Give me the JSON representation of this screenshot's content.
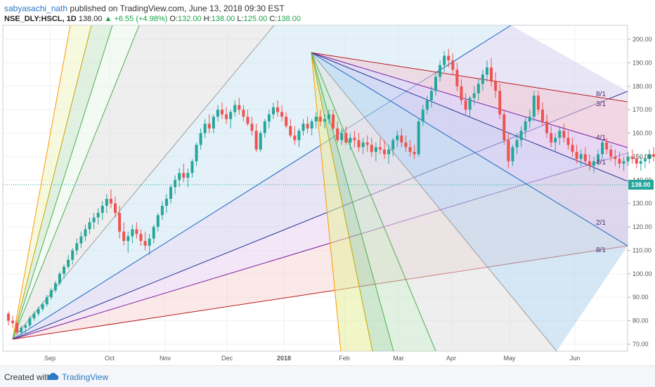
{
  "header": {
    "user": "sabyasachi_nath",
    "published": "published on TradingView.com, June 13, 2018 09:30 EST",
    "symbol": "NSE_DLY:HSCL, 1D",
    "price": "138.00",
    "change": "+6.55 (+4.98%)",
    "ohlc_o_label": "O:",
    "ohlc_o": "132.00",
    "ohlc_h_label": "H:",
    "ohlc_h": "138.00",
    "ohlc_l_label": "L:",
    "ohlc_l": "125.00",
    "ohlc_c_label": "C:",
    "ohlc_c": "138.00"
  },
  "footer": {
    "created": "Created with",
    "brand": "TradingView"
  },
  "colors": {
    "up": "#26a69a",
    "down": "#ef5350",
    "accent": "#2c79c4",
    "price_tag": "#26a69a"
  },
  "chart_data": {
    "type": "candlestick",
    "y_range": [
      67,
      206
    ],
    "y_ticks": [
      70,
      80,
      90,
      100,
      110,
      120,
      130,
      140,
      150,
      160,
      170,
      180,
      190,
      200
    ],
    "x_labels": [
      "Sep",
      "Oct",
      "Nov",
      "Dec",
      "2018",
      "Feb",
      "Mar",
      "Apr",
      "May",
      "Jun"
    ],
    "last_price": "138.00",
    "candles": [
      [
        83,
        84,
        78,
        80
      ],
      [
        80,
        82,
        77,
        79
      ],
      [
        79,
        80,
        74,
        75
      ],
      [
        75,
        78,
        73,
        77
      ],
      [
        77,
        79,
        74,
        78
      ],
      [
        78,
        82,
        77,
        81
      ],
      [
        81,
        84,
        80,
        83
      ],
      [
        83,
        86,
        82,
        85
      ],
      [
        85,
        88,
        84,
        87
      ],
      [
        87,
        91,
        86,
        90
      ],
      [
        90,
        94,
        89,
        93
      ],
      [
        93,
        97,
        92,
        96
      ],
      [
        96,
        101,
        95,
        100
      ],
      [
        100,
        104,
        98,
        103
      ],
      [
        103,
        108,
        102,
        106
      ],
      [
        106,
        111,
        104,
        110
      ],
      [
        110,
        115,
        108,
        113
      ],
      [
        113,
        118,
        111,
        116
      ],
      [
        116,
        121,
        114,
        119
      ],
      [
        119,
        124,
        117,
        122
      ],
      [
        122,
        126,
        119,
        124
      ],
      [
        124,
        128,
        121,
        126
      ],
      [
        126,
        131,
        123,
        129
      ],
      [
        129,
        134,
        126,
        132
      ],
      [
        132,
        136,
        128,
        130
      ],
      [
        130,
        133,
        124,
        126
      ],
      [
        126,
        129,
        115,
        118
      ],
      [
        118,
        122,
        112,
        114
      ],
      [
        114,
        118,
        109,
        116
      ],
      [
        116,
        121,
        113,
        119
      ],
      [
        119,
        122,
        115,
        117
      ],
      [
        117,
        119,
        112,
        114
      ],
      [
        114,
        118,
        110,
        112
      ],
      [
        112,
        117,
        108,
        115
      ],
      [
        115,
        121,
        113,
        120
      ],
      [
        120,
        126,
        118,
        125
      ],
      [
        125,
        131,
        123,
        129
      ],
      [
        129,
        134,
        126,
        132
      ],
      [
        132,
        138,
        130,
        137
      ],
      [
        137,
        142,
        134,
        140
      ],
      [
        140,
        145,
        137,
        143
      ],
      [
        143,
        147,
        139,
        141
      ],
      [
        141,
        145,
        137,
        143
      ],
      [
        143,
        149,
        141,
        148
      ],
      [
        148,
        156,
        146,
        155
      ],
      [
        155,
        162,
        153,
        160
      ],
      [
        160,
        166,
        158,
        164
      ],
      [
        164,
        168,
        160,
        162
      ],
      [
        162,
        168,
        160,
        167
      ],
      [
        167,
        172,
        165,
        170
      ],
      [
        170,
        173,
        166,
        168
      ],
      [
        168,
        171,
        164,
        166
      ],
      [
        166,
        170,
        162,
        169
      ],
      [
        169,
        174,
        167,
        172
      ],
      [
        172,
        175,
        168,
        170
      ],
      [
        170,
        172,
        165,
        167
      ],
      [
        167,
        170,
        163,
        164
      ],
      [
        164,
        167,
        159,
        161
      ],
      [
        161,
        164,
        152,
        153
      ],
      [
        153,
        161,
        152,
        160
      ],
      [
        160,
        166,
        158,
        165
      ],
      [
        165,
        170,
        162,
        168
      ],
      [
        168,
        173,
        166,
        171
      ],
      [
        171,
        174,
        167,
        169
      ],
      [
        169,
        172,
        165,
        167
      ],
      [
        167,
        169,
        162,
        163
      ],
      [
        163,
        166,
        158,
        159
      ],
      [
        159,
        163,
        155,
        157
      ],
      [
        157,
        162,
        154,
        161
      ],
      [
        161,
        166,
        159,
        164
      ],
      [
        164,
        167,
        160,
        162
      ],
      [
        162,
        166,
        159,
        165
      ],
      [
        165,
        169,
        162,
        167
      ],
      [
        167,
        170,
        163,
        165
      ],
      [
        165,
        168,
        162,
        166
      ],
      [
        166,
        170,
        164,
        168
      ],
      [
        168,
        170,
        161,
        162
      ],
      [
        162,
        165,
        156,
        157
      ],
      [
        157,
        162,
        155,
        160
      ],
      [
        160,
        163,
        155,
        156
      ],
      [
        156,
        160,
        153,
        158
      ],
      [
        158,
        161,
        154,
        157
      ],
      [
        157,
        160,
        152,
        154
      ],
      [
        154,
        158,
        151,
        156
      ],
      [
        156,
        159,
        152,
        155
      ],
      [
        155,
        158,
        150,
        152
      ],
      [
        152,
        156,
        148,
        154
      ],
      [
        154,
        158,
        151,
        153
      ],
      [
        153,
        157,
        149,
        151
      ],
      [
        151,
        155,
        147,
        153
      ],
      [
        153,
        158,
        150,
        157
      ],
      [
        157,
        161,
        154,
        159
      ],
      [
        159,
        162,
        154,
        156
      ],
      [
        156,
        159,
        152,
        154
      ],
      [
        154,
        157,
        150,
        152
      ],
      [
        152,
        155,
        149,
        151
      ],
      [
        151,
        166,
        150,
        165
      ],
      [
        165,
        172,
        163,
        170
      ],
      [
        170,
        176,
        168,
        174
      ],
      [
        174,
        180,
        171,
        178
      ],
      [
        178,
        186,
        176,
        184
      ],
      [
        184,
        191,
        182,
        189
      ],
      [
        189,
        195,
        186,
        193
      ],
      [
        193,
        196,
        188,
        191
      ],
      [
        191,
        194,
        185,
        187
      ],
      [
        187,
        190,
        178,
        180
      ],
      [
        180,
        183,
        172,
        174
      ],
      [
        174,
        177,
        168,
        170
      ],
      [
        170,
        176,
        167,
        175
      ],
      [
        175,
        180,
        172,
        177
      ],
      [
        177,
        183,
        174,
        181
      ],
      [
        181,
        187,
        178,
        185
      ],
      [
        185,
        191,
        182,
        188
      ],
      [
        188,
        192,
        180,
        182
      ],
      [
        182,
        186,
        175,
        178
      ],
      [
        178,
        181,
        166,
        168
      ],
      [
        168,
        170,
        155,
        157
      ],
      [
        157,
        160,
        145,
        148
      ],
      [
        148,
        155,
        146,
        154
      ],
      [
        154,
        160,
        151,
        157
      ],
      [
        157,
        163,
        154,
        161
      ],
      [
        161,
        167,
        158,
        165
      ],
      [
        165,
        170,
        162,
        167
      ],
      [
        167,
        178,
        165,
        176
      ],
      [
        176,
        178,
        168,
        170
      ],
      [
        170,
        173,
        163,
        165
      ],
      [
        165,
        168,
        158,
        160
      ],
      [
        160,
        163,
        154,
        156
      ],
      [
        156,
        160,
        152,
        158
      ],
      [
        158,
        163,
        155,
        161
      ],
      [
        161,
        164,
        156,
        158
      ],
      [
        158,
        161,
        153,
        155
      ],
      [
        155,
        158,
        150,
        152
      ],
      [
        152,
        155,
        147,
        149
      ],
      [
        149,
        153,
        146,
        151
      ],
      [
        151,
        154,
        147,
        148
      ],
      [
        148,
        151,
        144,
        146
      ],
      [
        146,
        150,
        143,
        148
      ],
      [
        148,
        153,
        146,
        151
      ],
      [
        151,
        157,
        149,
        156
      ],
      [
        156,
        158,
        151,
        153
      ],
      [
        153,
        155,
        148,
        150
      ],
      [
        150,
        153,
        146,
        149
      ],
      [
        149,
        152,
        145,
        147
      ],
      [
        147,
        150,
        144,
        148
      ],
      [
        148,
        152,
        146,
        150
      ],
      [
        150,
        153,
        147,
        149
      ],
      [
        149,
        151,
        145,
        147
      ],
      [
        147,
        150,
        144,
        148
      ],
      [
        148,
        151,
        145,
        149
      ],
      [
        149,
        153,
        147,
        151
      ],
      [
        151,
        154,
        148,
        150
      ],
      [
        150,
        153,
        147,
        149
      ],
      [
        149,
        152,
        146,
        148
      ],
      [
        148,
        151,
        145,
        150
      ],
      [
        150,
        153,
        147,
        149
      ],
      [
        149,
        152,
        145,
        147
      ],
      [
        147,
        151,
        145,
        150
      ],
      [
        150,
        154,
        148,
        153
      ],
      [
        153,
        155,
        149,
        151
      ],
      [
        151,
        153,
        145,
        146
      ],
      [
        146,
        149,
        141,
        143
      ],
      [
        143,
        146,
        120,
        122
      ],
      [
        122,
        132,
        121,
        131
      ],
      [
        131,
        141,
        129,
        138
      ],
      [
        138,
        140,
        131,
        133
      ],
      [
        133,
        136,
        130,
        134
      ],
      [
        134,
        137,
        131,
        133
      ],
      [
        133,
        136,
        129,
        132
      ],
      [
        132,
        137,
        130,
        135
      ],
      [
        135,
        138,
        130,
        131
      ],
      [
        131,
        140,
        130,
        139
      ],
      [
        139,
        143,
        136,
        141
      ],
      [
        141,
        143,
        136,
        138
      ],
      [
        138,
        140,
        131,
        132
      ],
      [
        132,
        134,
        120,
        122
      ],
      [
        122,
        124,
        109,
        113
      ],
      [
        113,
        121,
        111,
        120
      ],
      [
        120,
        128,
        118,
        126
      ],
      [
        126,
        131,
        123,
        129
      ],
      [
        129,
        135,
        126,
        133
      ],
      [
        132,
        138,
        125,
        138
      ]
    ],
    "fans": [
      {
        "origin": [
          0,
          72
        ],
        "lines": [
          [
            8,
            196
          ],
          [
            17,
            196
          ],
          [
            26,
            196
          ],
          [
            41,
            196
          ],
          [
            128,
            125
          ],
          [
            128,
            118
          ],
          [
            128,
            111
          ],
          [
            128,
            98
          ]
        ]
      },
      {
        "origin": [
          98,
          196
        ],
        "lines": [
          [
            90,
            70
          ],
          [
            98,
            70
          ],
          [
            107,
            70
          ],
          [
            122,
            70
          ],
          [
            128,
            176
          ],
          [
            128,
            156
          ],
          [
            128,
            141
          ],
          [
            128,
            114
          ],
          [
            128,
            111
          ]
        ]
      }
    ],
    "fan_labels": [
      "8/1",
      "3/1",
      "4/1",
      "4/1",
      "2/1",
      "8/1"
    ]
  }
}
